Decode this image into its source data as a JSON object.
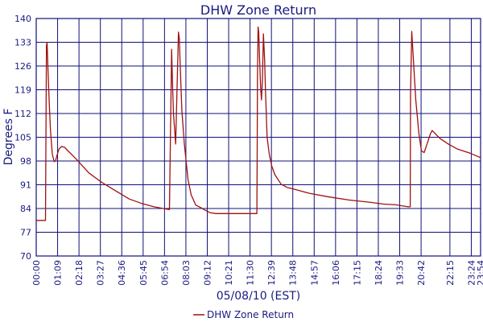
{
  "chart_data": {
    "type": "line",
    "title": "DHW Zone Return",
    "xlabel": "05/08/10 (EST)",
    "ylabel": "Degrees F",
    "ylim": [
      70,
      140
    ],
    "xlim": [
      0,
      1434
    ],
    "yticks": [
      70,
      77,
      84,
      91,
      98,
      105,
      112,
      119,
      126,
      133,
      140
    ],
    "xtick_labels": [
      "00:00",
      "01:09",
      "02:18",
      "03:27",
      "04:36",
      "05:45",
      "06:54",
      "08:03",
      "09:12",
      "10:21",
      "11:30",
      "12:39",
      "13:48",
      "14:57",
      "16:06",
      "17:15",
      "18:24",
      "19:33",
      "20:42",
      "22:15",
      "23:24",
      "23:54"
    ],
    "xtick_minutes": [
      0,
      69,
      138,
      207,
      276,
      345,
      414,
      483,
      552,
      621,
      690,
      759,
      828,
      897,
      966,
      1035,
      1104,
      1173,
      1242,
      1335,
      1404,
      1434
    ],
    "grid": true,
    "legend_position": "bottom-center",
    "series": [
      {
        "name": "DHW Zone Return",
        "color": "#a01010",
        "x_minutes": [
          0,
          25,
          27,
          30,
          33,
          35,
          38,
          42,
          46,
          52,
          58,
          62,
          68,
          74,
          82,
          92,
          100,
          108,
          130,
          170,
          210,
          260,
          300,
          340,
          380,
          410,
          430,
          437,
          440,
          443,
          447,
          450,
          454,
          459,
          462,
          464,
          467,
          470,
          478,
          490,
          500,
          515,
          530,
          545,
          560,
          580,
          600,
          625,
          650,
          700,
          712,
          713,
          714,
          716,
          718,
          721,
          724,
          727,
          730,
          733,
          737,
          740,
          745,
          752,
          760,
          770,
          790,
          810,
          840,
          880,
          940,
          1010,
          1080,
          1120,
          1160,
          1200,
          1207,
          1208,
          1212,
          1217,
          1225,
          1235,
          1243,
          1252,
          1265,
          1272,
          1278,
          1290,
          1305,
          1330,
          1360,
          1400,
          1434
        ],
        "y": [
          80.5,
          80.5,
          80.5,
          80.5,
          132,
          133,
          125,
          115,
          107,
          100,
          97.8,
          98,
          100,
          101.6,
          102.3,
          102,
          101.2,
          100.5,
          98.5,
          94.5,
          91.8,
          89,
          86.8,
          85.5,
          84.5,
          84,
          83.7,
          130.9,
          120,
          112,
          106.7,
          103,
          118,
          136,
          134,
          128,
          120,
          113,
          103,
          92.5,
          88,
          85,
          84.3,
          83.5,
          82.8,
          82.5,
          82.5,
          82.5,
          82.5,
          82.5,
          82.5,
          101,
          122,
          137.5,
          136,
          128,
          120,
          116,
          122,
          135.5,
          128,
          118,
          105,
          100,
          96.5,
          94,
          91.2,
          90.2,
          89.5,
          88.5,
          87.5,
          86.5,
          85.8,
          85.3,
          85.1,
          84.5,
          84.5,
          118,
          136.2,
          128,
          116,
          106,
          101,
          100.5,
          104,
          106,
          107,
          105.8,
          104.5,
          103,
          101.5,
          100.3,
          99
        ]
      }
    ]
  }
}
